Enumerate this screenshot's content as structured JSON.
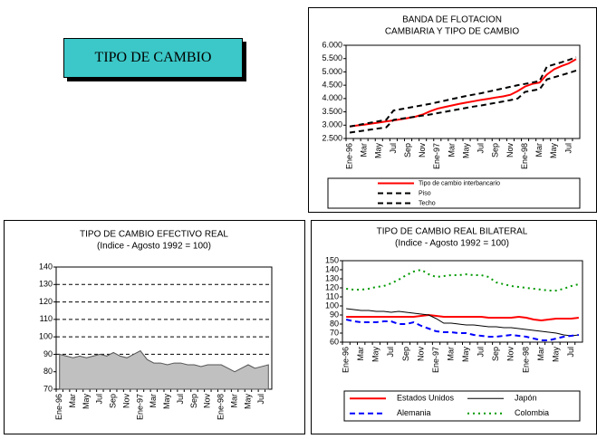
{
  "title_box": {
    "text": "TIPO DE CAMBIO"
  },
  "chart_data": [
    {
      "type": "line",
      "title": "BANDA DE FLOTACION",
      "subtitle": "CAMBIARIA Y TIPO DE CAMBIO",
      "categories": [
        "Ene-96",
        null,
        "Mar",
        null,
        "May",
        null,
        "Jul",
        null,
        "Sep",
        null,
        "Nov",
        null,
        "Ene-97",
        null,
        "Mar",
        null,
        "May",
        null,
        "Jul",
        null,
        "Sep",
        null,
        "Nov",
        null,
        "Ene-98",
        null,
        "Mar",
        null,
        "May",
        null,
        "Jul",
        null
      ],
      "series": [
        {
          "name": "Tipo de cambio interbancario",
          "color": "#ff0000",
          "style": "solid",
          "values": [
            2.95,
            2.99,
            3.02,
            3.06,
            3.1,
            3.14,
            3.18,
            3.22,
            3.27,
            3.32,
            3.4,
            3.52,
            3.62,
            3.68,
            3.74,
            3.8,
            3.85,
            3.9,
            3.95,
            3.99,
            4.04,
            4.08,
            4.14,
            4.28,
            4.45,
            4.55,
            4.6,
            4.9,
            5.1,
            5.22,
            5.32,
            5.48
          ]
        },
        {
          "name": "Piso",
          "color": "#000000",
          "style": "dashed",
          "values": [
            2.72,
            2.76,
            2.8,
            2.84,
            2.88,
            2.92,
            3.2,
            3.24,
            3.28,
            3.32,
            3.36,
            3.4,
            3.45,
            3.5,
            3.55,
            3.6,
            3.65,
            3.7,
            3.74,
            3.79,
            3.84,
            3.89,
            3.94,
            4.0,
            4.25,
            4.3,
            4.35,
            4.72,
            4.8,
            4.88,
            4.96,
            5.05
          ]
        },
        {
          "name": "Techo",
          "color": "#000000",
          "style": "dashed",
          "values": [
            2.95,
            3.0,
            3.05,
            3.1,
            3.15,
            3.2,
            3.55,
            3.6,
            3.65,
            3.7,
            3.75,
            3.8,
            3.86,
            3.92,
            3.98,
            4.04,
            4.1,
            4.15,
            4.2,
            4.26,
            4.32,
            4.38,
            4.44,
            4.5,
            4.55,
            4.6,
            4.66,
            5.2,
            5.28,
            5.36,
            5.45,
            5.55
          ]
        }
      ],
      "ylim": [
        2.5,
        6
      ],
      "yticks": [
        {
          "value": 2.5,
          "label": "2.500"
        },
        {
          "value": 3,
          "label": "3.000"
        },
        {
          "value": 3.5,
          "label": "3.500"
        },
        {
          "value": 4,
          "label": "4.000"
        },
        {
          "value": 4.5,
          "label": "4.500"
        },
        {
          "value": 5,
          "label": "5.000"
        },
        {
          "value": 5.5,
          "label": "5.500"
        },
        {
          "value": 6,
          "label": "6.000"
        }
      ],
      "grid": false
    },
    {
      "type": "area",
      "title": "TIPO DE CAMBIO EFECTIVO REAL",
      "subtitle": "(Indice - Agosto 1992 = 100)",
      "categories": [
        "Ene-96",
        null,
        "Mar",
        null,
        "May",
        null,
        "Jul",
        null,
        "Sep",
        null,
        "Nov",
        null,
        "Ene-97",
        null,
        "Mar",
        null,
        "May",
        null,
        "Jul",
        null,
        "Sep",
        null,
        "Nov",
        null,
        "Ene-98",
        null,
        "Mar",
        null,
        "May",
        null,
        "Jul",
        null
      ],
      "values": [
        90,
        89,
        88,
        89,
        88,
        89,
        90,
        89,
        91,
        89,
        88,
        90,
        92,
        87,
        85,
        85,
        84,
        85,
        85,
        84,
        84,
        83,
        84,
        84,
        84,
        82,
        80,
        82,
        84,
        82,
        83,
        84
      ],
      "color": "#c0c0c0",
      "ylim": [
        70,
        140
      ],
      "yticks": [
        70,
        80,
        90,
        100,
        110,
        120,
        130,
        140
      ],
      "grid": true
    },
    {
      "type": "line",
      "title": "TIPO DE CAMBIO REAL BILATERAL",
      "subtitle": "(Indice - Agosto 1992 = 100)",
      "categories": [
        "Ene-96",
        null,
        "Mar",
        null,
        "May",
        null,
        "Jul",
        null,
        "Sep",
        null,
        "Nov",
        null,
        "Ene-97",
        null,
        "Mar",
        null,
        "May",
        null,
        "Jul",
        null,
        "Sep",
        null,
        "Nov",
        null,
        "Ene-98",
        null,
        "Mar",
        null,
        "May",
        null,
        "Jul",
        null
      ],
      "series": [
        {
          "name": "Estados Unidos",
          "color": "#ff0000",
          "style": "solid",
          "values": [
            88,
            88,
            88,
            88,
            88,
            88,
            88,
            88,
            88,
            88,
            89,
            90,
            89,
            88,
            88,
            88,
            88,
            88,
            88,
            87,
            87,
            87,
            87,
            88,
            87,
            85,
            84,
            85,
            86,
            86,
            86,
            87
          ]
        },
        {
          "name": "Japón",
          "color": "#000000",
          "style": "thin",
          "values": [
            97,
            96,
            95,
            95,
            94,
            94,
            93,
            94,
            93,
            92,
            91,
            90,
            86,
            81,
            81,
            80,
            79,
            79,
            78,
            77,
            77,
            76,
            76,
            75,
            74,
            73,
            72,
            71,
            70,
            68,
            67,
            68
          ]
        },
        {
          "name": "Alemania",
          "color": "#0000ff",
          "style": "dashed",
          "values": [
            85,
            83,
            82,
            82,
            82,
            83,
            83,
            80,
            80,
            82,
            78,
            75,
            72,
            71,
            71,
            70,
            70,
            68,
            67,
            66,
            66,
            67,
            68,
            67,
            66,
            64,
            62,
            62,
            64,
            66,
            67,
            68
          ]
        },
        {
          "name": "Colombia",
          "color": "#009900",
          "style": "dotted",
          "values": [
            119,
            118,
            118,
            119,
            121,
            122,
            125,
            129,
            134,
            138,
            140,
            135,
            132,
            133,
            134,
            134,
            135,
            134,
            134,
            132,
            126,
            124,
            122,
            121,
            120,
            119,
            118,
            117,
            117,
            119,
            122,
            124
          ]
        }
      ],
      "ylim": [
        60,
        150
      ],
      "yticks": [
        60,
        70,
        80,
        90,
        100,
        110,
        120,
        130,
        140,
        150
      ],
      "grid": false
    }
  ]
}
